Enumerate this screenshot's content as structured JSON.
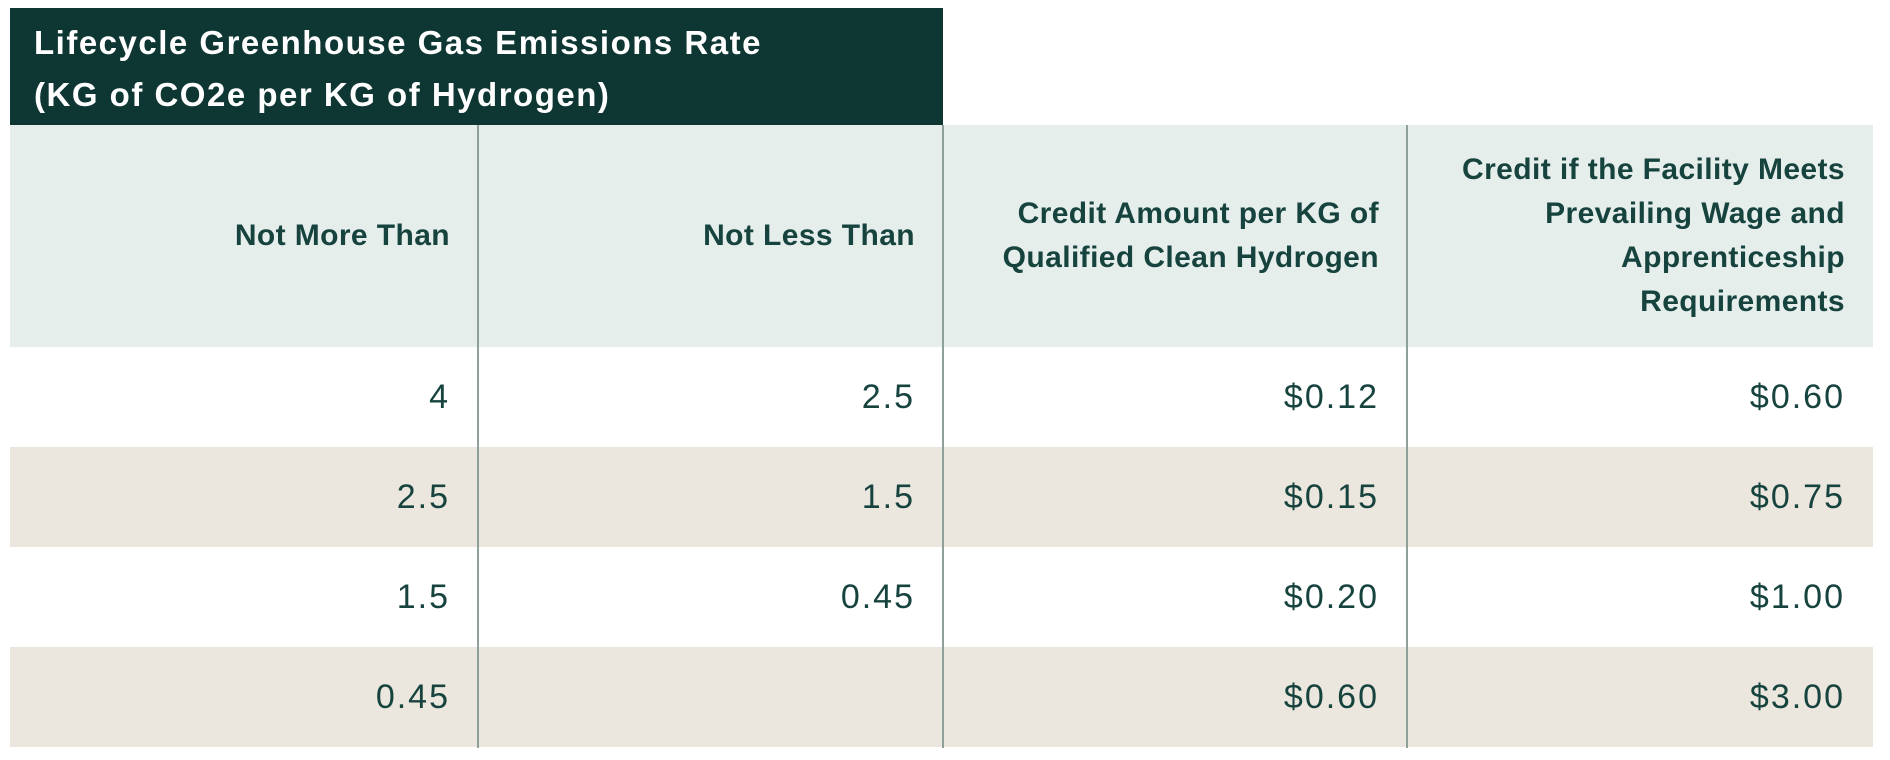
{
  "banner": {
    "line1": "Lifecycle Greenhouse Gas Emissions Rate",
    "line2": "(KG of CO2e per KG of Hydrogen)"
  },
  "chart_data": {
    "type": "table",
    "title": "Lifecycle Greenhouse Gas Emissions Rate (KG of CO2e per KG of Hydrogen)",
    "columns": [
      "Not More Than",
      "Not Less Than",
      "Credit Amount per KG of Qualified Clean Hydrogen",
      "Credit if the Facility Meets Prevailing Wage and Apprenticeship Requirements"
    ],
    "rows": [
      [
        "4",
        "2.5",
        "$0.12",
        "$0.60"
      ],
      [
        "2.5",
        "1.5",
        "$0.15",
        "$0.75"
      ],
      [
        "1.5",
        "0.45",
        "$0.20",
        "$1.00"
      ],
      [
        "0.45",
        "",
        "$0.60",
        "$3.00"
      ]
    ],
    "layout_hints": {
      "row_striping": "alternating white and beige",
      "value_alignment": "right",
      "header_alignment": "right"
    }
  },
  "colors": {
    "banner_bg": "#0e3734",
    "banner_text": "#ffffff",
    "header_bg": "#e6eeec",
    "row_alt_bg": "#ebe7de",
    "row_bg": "#ffffff",
    "text_dark": "#17433e",
    "divider": "#8fa09b",
    "page_bg": "#ffffff"
  }
}
